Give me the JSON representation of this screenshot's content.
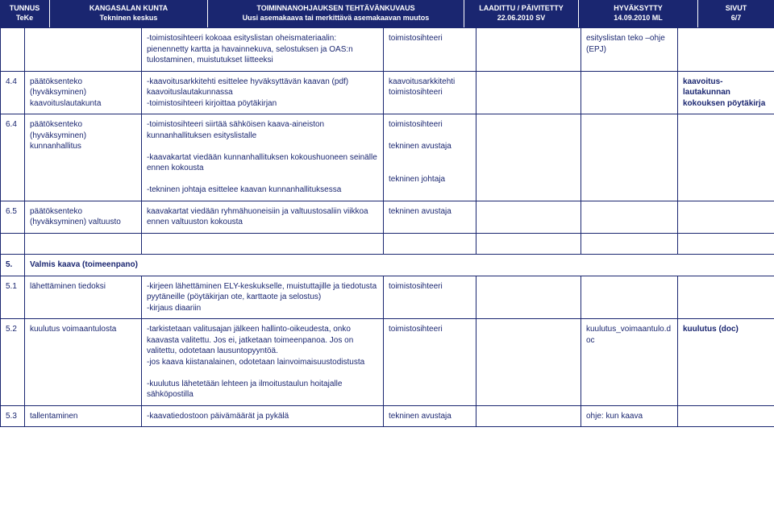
{
  "header": {
    "tunnus": {
      "line1": "TUNNUS",
      "line2": "TeKe"
    },
    "kunta": {
      "line1": "KANGASALAN KUNTA",
      "line2": "Tekninen keskus"
    },
    "toim": {
      "line1": "TOIMINNANOHJAUKSEN TEHTÄVÄNKUVAUS",
      "line2": "Uusi asemakaava tai merkittävä asemakaavan muutos"
    },
    "laad": {
      "line1": "LAADITTU / PÄIVITETTY",
      "line2": "22.06.2010 SV"
    },
    "hyv": {
      "line1": "HYVÄKSYTTY",
      "line2": "14.09.2010 ML"
    },
    "sivut": {
      "line1": "SIVUT",
      "line2": "6/7"
    }
  },
  "rows": [
    {
      "num": "",
      "task": "",
      "desc": "-toimistosihteeri kokoaa esityslistan oheismateriaalin: pienennetty kartta ja havainnekuva, selostuksen ja OAS:n tulostaminen, muistutukset liitteeksi",
      "who": "toimistosihteeri",
      "note1": "esityslistan teko –ohje (EPJ)",
      "note2": ""
    },
    {
      "num": "4.4",
      "task": "päätöksenteko (hyväksyminen) kaavoituslautakunta",
      "desc": "-kaavoitusarkkitehti esittelee hyväksyttävän kaavan (pdf) kaavoituslautakunnassa\n-toimistosihteeri kirjoittaa pöytäkirjan",
      "who": "kaavoitusarkkitehti toimistosihteeri",
      "note1": "",
      "note2": "kaavoitus-lautakunnan kokouksen pöytäkirja"
    },
    {
      "num": "6.4",
      "task": "päätöksenteko (hyväksyminen) kunnanhallitus",
      "desc": "-toimistosihteeri siirtää sähköisen kaava-aineiston kunnanhallituksen esityslistalle\n\n-kaavakartat viedään kunnanhallituksen kokoushuoneen seinälle ennen kokousta\n\n-tekninen johtaja esittelee kaavan kunnanhallituksessa",
      "who": "toimistosihteeri\n\ntekninen avustaja\n\n\ntekninen johtaja",
      "note1": "",
      "note2": ""
    },
    {
      "num": "6.5",
      "task": "päätöksenteko (hyväksyminen) valtuusto",
      "desc": "kaavakartat viedään ryhmähuoneisiin ja valtuustosaliin viikkoa ennen valtuuston kokousta",
      "who": "tekninen avustaja",
      "note1": "",
      "note2": ""
    }
  ],
  "section5": {
    "num": "5.",
    "title": "Valmis kaava (toimeenpano)"
  },
  "rows2": [
    {
      "num": "5.1",
      "task": "lähettäminen tiedoksi",
      "desc": "-kirjeen lähettäminen ELY-keskukselle, muistuttajille ja tiedotusta pyytäneille (pöytäkirjan ote, karttaote ja selostus)\n-kirjaus diaariin",
      "who": "toimistosihteeri",
      "note1": "",
      "note2": ""
    },
    {
      "num": "5.2",
      "task": "kuulutus voimaantulosta",
      "desc": "-tarkistetaan valitusajan jälkeen hallinto-oikeudesta, onko kaavasta valitettu. Jos ei, jatketaan toimeenpanoa. Jos on valitettu, odotetaan lausuntopyyntöä.\n-jos kaava kiistanalainen, odotetaan lainvoimaisuustodistusta\n\n-kuulutus lähetetään lehteen ja ilmoitustaulun hoitajalle sähköpostilla",
      "who": "toimistosihteeri",
      "note1": "kuulutus_voimaantulo.doc",
      "note2": "kuulutus (doc)"
    },
    {
      "num": "5.3",
      "task": "tallentaminen",
      "desc": "-kaavatiedostoon päivämäärät ja pykälä",
      "who": "tekninen avustaja",
      "note1": "ohje: kun kaava",
      "note2": ""
    }
  ]
}
